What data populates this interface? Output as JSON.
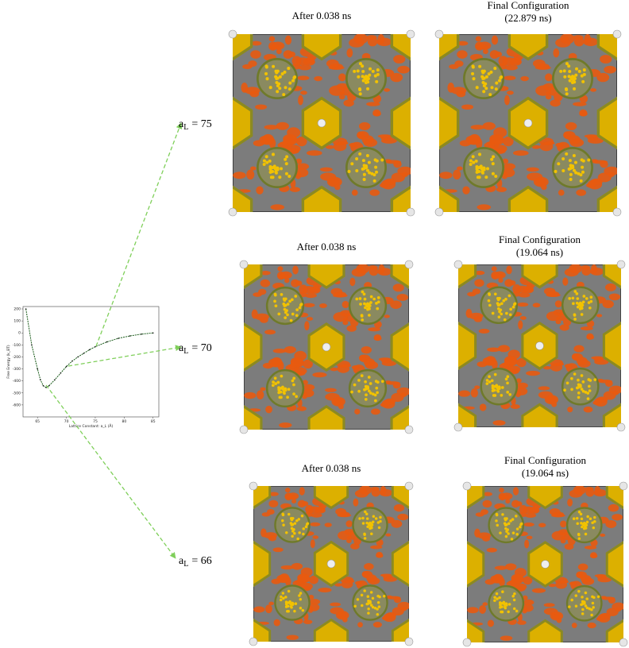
{
  "chart_data": {
    "type": "line",
    "y_label": "Free Energy (k_BT)",
    "x_label": "Lattice Constant: a_L (Å)",
    "x": [
      63,
      64,
      65,
      65.5,
      66,
      66.5,
      67,
      68,
      69,
      70,
      71,
      72,
      73,
      74,
      75,
      77,
      79,
      81,
      83,
      85
    ],
    "series": [
      {
        "color": "#1a5c1a",
        "values": [
          200,
          -100,
          -300,
          -390,
          -440,
          -455,
          -440,
          -390,
          -335,
          -280,
          -235,
          -200,
          -170,
          -140,
          -115,
          -75,
          -45,
          -25,
          -10,
          0
        ]
      }
    ],
    "xlim": [
      62.5,
      86
    ],
    "ylim": [
      -700,
      220
    ],
    "xticks": [
      65,
      70,
      75,
      80,
      85
    ],
    "yticks": [
      200,
      100,
      0,
      -100,
      -200,
      -300,
      -400,
      -500,
      -600
    ]
  },
  "rows": [
    {
      "label": {
        "symbol": "a",
        "subscript": "L",
        "value": "= 75"
      },
      "panels": [
        {
          "title": [
            "After 0.038 ns"
          ]
        },
        {
          "title": [
            "Final Configuration",
            "(22.879 ns)"
          ]
        }
      ]
    },
    {
      "label": {
        "symbol": "a",
        "subscript": "L",
        "value": "= 70"
      },
      "panels": [
        {
          "title": [
            "After 0.038 ns"
          ]
        },
        {
          "title": [
            "Final Configuration",
            "(19.064 ns)"
          ]
        }
      ]
    },
    {
      "label": {
        "symbol": "a",
        "subscript": "L",
        "value": "= 66"
      },
      "panels": [
        {
          "title": [
            "After 0.038 ns"
          ]
        },
        {
          "title": [
            "Final Configuration",
            "(19.064 ns)"
          ]
        }
      ]
    }
  ]
}
